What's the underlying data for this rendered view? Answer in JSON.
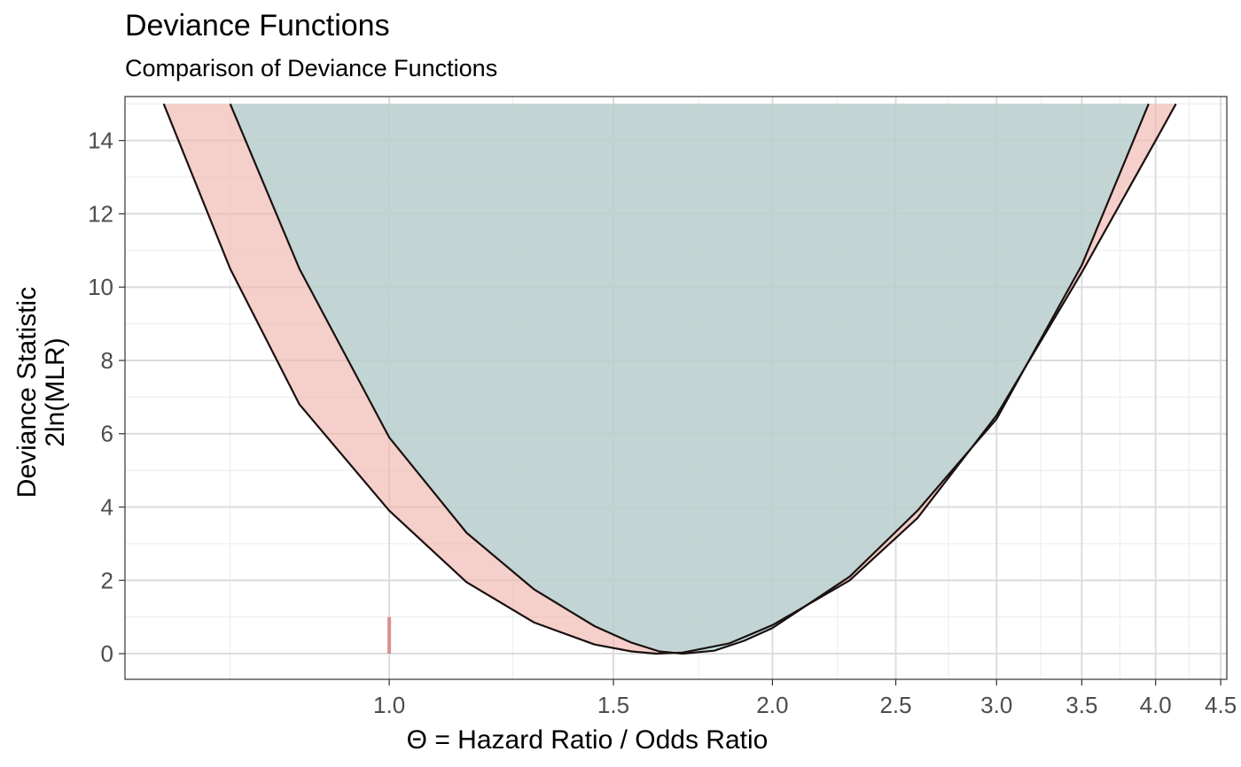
{
  "chart_data": {
    "type": "area",
    "title": "Deviance Functions",
    "subtitle": "Comparison of Deviance Functions",
    "xlabel": "Θ = Hazard Ratio / Odds Ratio",
    "ylabel_line1": "Deviance Statistic",
    "ylabel_line2": "2ln(MLR)",
    "x_scale": "log",
    "xlim": [
      0.62,
      4.55
    ],
    "ylim": [
      -0.7,
      15.2
    ],
    "x_ticks": [
      {
        "value": 1.0,
        "label": "1.0"
      },
      {
        "value": 1.5,
        "label": "1.5"
      },
      {
        "value": 2.0,
        "label": "2.0"
      },
      {
        "value": 2.5,
        "label": "2.5"
      },
      {
        "value": 3.0,
        "label": "3.0"
      },
      {
        "value": 3.5,
        "label": "3.5"
      },
      {
        "value": 4.0,
        "label": "4.0"
      },
      {
        "value": 4.5,
        "label": "4.5"
      }
    ],
    "x_minor_grid": [
      0.75,
      1.25,
      1.75,
      2.25,
      2.75,
      3.25,
      3.75,
      4.25
    ],
    "y_ticks": [
      0,
      2,
      4,
      6,
      8,
      10,
      12,
      14
    ],
    "grid": true,
    "series": [
      {
        "fill": "#f0b5ae",
        "fill_opacity": 0.65,
        "x": [
          0.665,
          0.75,
          0.85,
          1.0,
          1.15,
          1.3,
          1.45,
          1.55,
          1.62,
          1.7,
          1.85,
          2.0,
          2.3,
          2.6,
          3.0,
          3.5,
          4.0,
          4.15
        ],
        "y": [
          15.0,
          10.5,
          6.8,
          3.9,
          1.95,
          0.85,
          0.25,
          0.06,
          0.0,
          0.03,
          0.28,
          0.78,
          2.0,
          3.7,
          6.5,
          10.4,
          14.0,
          15.0
        ]
      },
      {
        "fill": "#a6d8d8",
        "fill_opacity": 0.65,
        "x": [
          0.75,
          0.85,
          1.0,
          1.15,
          1.3,
          1.45,
          1.55,
          1.63,
          1.7,
          1.8,
          1.9,
          2.0,
          2.3,
          2.6,
          2.8,
          3.0,
          3.5,
          3.95
        ],
        "y": [
          15.0,
          10.5,
          5.9,
          3.3,
          1.75,
          0.75,
          0.3,
          0.06,
          0.0,
          0.08,
          0.35,
          0.7,
          2.1,
          3.9,
          5.2,
          6.4,
          10.6,
          15.0
        ]
      }
    ],
    "marker": {
      "x": 1.0,
      "y_from": 0,
      "y_to": 1.0,
      "color": "#d99090"
    },
    "band_top": 15.0
  }
}
